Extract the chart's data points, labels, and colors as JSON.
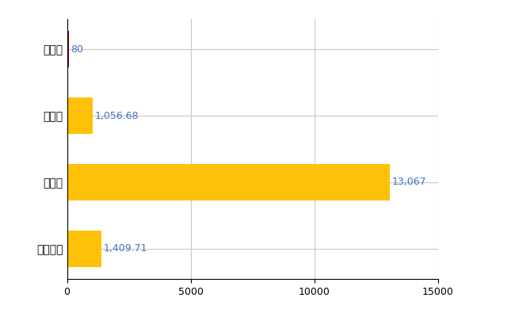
{
  "categories": [
    "全国平均",
    "県最大",
    "県平均",
    "大郷町"
  ],
  "values": [
    1409.71,
    13067,
    1056.68,
    80
  ],
  "bar_colors": [
    "#FFC107",
    "#FFC107",
    "#FFC107",
    "#8B0000"
  ],
  "value_labels": [
    "1,409.71",
    "13,067",
    "1,056.68",
    "80"
  ],
  "label_color": "#4472C4",
  "xlim": [
    0,
    15000
  ],
  "xticks": [
    0,
    5000,
    10000,
    15000
  ],
  "xtick_labels": [
    "0",
    "5000",
    "10000",
    "15000"
  ],
  "grid_color": "#C8C8C8",
  "background_color": "#FFFFFF",
  "bar_height": 0.55
}
